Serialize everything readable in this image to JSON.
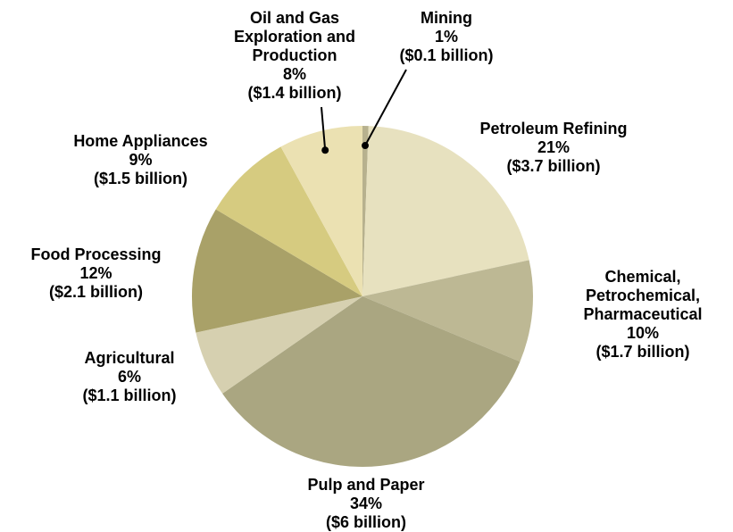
{
  "chart_data": {
    "type": "pie",
    "title": "",
    "start_angle_deg": 0,
    "direction": "clockwise",
    "slices": [
      {
        "name": "Mining",
        "percent_label": "1%",
        "value_label": "($0.1 billion)",
        "value": 0.1,
        "percent": 1,
        "color": "#b7b18e"
      },
      {
        "name": "Petroleum Refining",
        "percent_label": "21%",
        "value_label": "($3.7 billion)",
        "value": 3.7,
        "percent": 21,
        "color": "#e7e1bf"
      },
      {
        "name": "Chemical, Petrochemical, Pharmaceutical",
        "name_lines": [
          "Chemical,",
          "Petrochemical,",
          "Pharmaceutical"
        ],
        "percent_label": "10%",
        "value_label": "($1.7 billion)",
        "value": 1.7,
        "percent": 10,
        "color": "#bdb894"
      },
      {
        "name": "Pulp and Paper",
        "percent_label": "34%",
        "value_label": "($6 billion)",
        "value": 6.0,
        "percent": 34,
        "color": "#aaa681"
      },
      {
        "name": "Agricultural",
        "percent_label": "6%",
        "value_label": "($1.1 billion)",
        "value": 1.1,
        "percent": 6,
        "color": "#d6d0b0"
      },
      {
        "name": "Food Processing",
        "percent_label": "12%",
        "value_label": "($2.1 billion)",
        "value": 2.1,
        "percent": 12,
        "color": "#a9a168"
      },
      {
        "name": "Home Appliances",
        "percent_label": "9%",
        "value_label": "($1.5 billion)",
        "value": 1.5,
        "percent": 9,
        "color": "#d6cb80"
      },
      {
        "name": "Oil and Gas Exploration and Production",
        "name_lines": [
          "Oil and Gas",
          "Exploration and",
          "Production"
        ],
        "percent_label": "8%",
        "value_label": "($1.4 billion)",
        "value": 1.4,
        "percent": 8,
        "color": "#ebe1b2"
      }
    ]
  }
}
